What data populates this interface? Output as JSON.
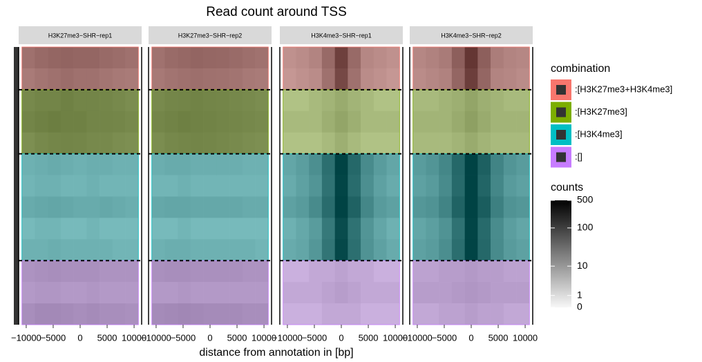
{
  "chart_data": {
    "type": "heatmap",
    "title": "Read count around TSS",
    "x_label": "distance from annotation in [bp]",
    "xlim": [
      -11400,
      11400
    ],
    "xticks": [
      {
        "value": -10000,
        "label": "−10000"
      },
      {
        "value": -5000,
        "label": "−5000"
      },
      0,
      5000,
      10000
    ],
    "x_bins": [
      -10800,
      -8400,
      -6000,
      -3600,
      -1200,
      1200,
      3600,
      6000,
      8400,
      10800
    ],
    "legend": {
      "title": "combination",
      "categories": [
        ":[H3K27me3+H3K4me3]",
        ":[H3K27me3]",
        ":[H3K4me3]",
        ":[]"
      ],
      "colors": [
        "#F8766D",
        "#7CAE00",
        "#00BFC4",
        "#C77CFF"
      ]
    },
    "colorbar": {
      "title": "counts",
      "lim": [
        0,
        500
      ],
      "ticks": [
        0,
        1,
        10,
        100,
        500
      ],
      "scale": "log1p"
    },
    "facets": [
      {
        "name": "H3K27me3−SHR−rep1",
        "groups": [
          {
            "rows": [
              [
                30,
                40,
                45,
                50,
                45,
                45,
                40,
                35,
                30
              ],
              [
                20,
                25,
                30,
                35,
                30,
                30,
                25,
                22,
                20
              ]
            ]
          },
          {
            "rows": [
              [
                25,
                30,
                30,
                35,
                30,
                30,
                28,
                25,
                22
              ],
              [
                30,
                35,
                40,
                35,
                35,
                30,
                30,
                28,
                25
              ],
              [
                20,
                25,
                28,
                30,
                28,
                25,
                25,
                22,
                20
              ]
            ]
          },
          {
            "rows": [
              [
                6,
                7,
                8,
                7,
                6,
                7,
                7,
                6,
                6
              ],
              [
                5,
                6,
                6,
                5,
                5,
                6,
                5,
                5,
                5
              ],
              [
                8,
                9,
                10,
                9,
                8,
                8,
                9,
                8,
                7
              ],
              [
                4,
                5,
                5,
                4,
                4,
                5,
                4,
                4,
                4
              ],
              [
                6,
                6,
                7,
                6,
                6,
                6,
                6,
                5,
                5
              ]
            ]
          },
          {
            "rows": [
              [
                8,
                9,
                10,
                9,
                9,
                9,
                8,
                8,
                8
              ],
              [
                6,
                7,
                7,
                6,
                6,
                7,
                6,
                6,
                6
              ],
              [
                10,
                12,
                12,
                11,
                10,
                11,
                10,
                10,
                9
              ]
            ]
          }
        ]
      },
      {
        "name": "H3K27me3−SHR−rep2",
        "groups": [
          {
            "rows": [
              [
                28,
                38,
                42,
                48,
                44,
                42,
                38,
                32,
                28
              ],
              [
                22,
                26,
                30,
                32,
                30,
                28,
                26,
                22,
                20
              ]
            ]
          },
          {
            "rows": [
              [
                24,
                28,
                30,
                32,
                30,
                28,
                26,
                24,
                22
              ],
              [
                28,
                32,
                36,
                34,
                32,
                30,
                28,
                26,
                24
              ],
              [
                22,
                26,
                28,
                30,
                28,
                26,
                24,
                22,
                20
              ]
            ]
          },
          {
            "rows": [
              [
                7,
                8,
                8,
                7,
                7,
                7,
                7,
                6,
                6
              ],
              [
                5,
                5,
                6,
                5,
                5,
                5,
                5,
                5,
                5
              ],
              [
                9,
                10,
                10,
                9,
                9,
                9,
                9,
                8,
                8
              ],
              [
                4,
                4,
                5,
                4,
                4,
                4,
                4,
                4,
                4
              ],
              [
                6,
                7,
                7,
                6,
                6,
                6,
                6,
                6,
                5
              ]
            ]
          },
          {
            "rows": [
              [
                9,
                10,
                10,
                9,
                9,
                9,
                9,
                8,
                8
              ],
              [
                6,
                6,
                7,
                6,
                6,
                6,
                6,
                6,
                6
              ],
              [
                11,
                12,
                13,
                12,
                11,
                11,
                11,
                10,
                10
              ]
            ]
          }
        ]
      },
      {
        "name": "H3K4me3−SHR−rep1",
        "groups": [
          {
            "rows": [
              [
                8,
                10,
                14,
                40,
                200,
                40,
                12,
                10,
                8
              ],
              [
                6,
                8,
                10,
                30,
                150,
                30,
                10,
                8,
                6
              ]
            ]
          },
          {
            "rows": [
              [
                2,
                2,
                3,
                4,
                6,
                4,
                3,
                2,
                2
              ],
              [
                3,
                3,
                3,
                5,
                8,
                5,
                3,
                3,
                3
              ],
              [
                2,
                2,
                2,
                3,
                5,
                3,
                2,
                2,
                2
              ]
            ]
          },
          {
            "rows": [
              [
                10,
                14,
                25,
                90,
                500,
                120,
                30,
                15,
                10
              ],
              [
                8,
                12,
                20,
                80,
                450,
                100,
                25,
                12,
                8
              ],
              [
                12,
                16,
                30,
                100,
                500,
                150,
                35,
                16,
                12
              ],
              [
                6,
                9,
                15,
                60,
                350,
                80,
                20,
                10,
                6
              ],
              [
                8,
                10,
                18,
                70,
                400,
                90,
                22,
                12,
                8
              ]
            ]
          },
          {
            "rows": [
              [
                2,
                2,
                3,
                3,
                4,
                3,
                3,
                2,
                2
              ],
              [
                3,
                3,
                3,
                4,
                5,
                4,
                3,
                3,
                3
              ],
              [
                2,
                2,
                2,
                3,
                3,
                3,
                2,
                2,
                2
              ]
            ]
          }
        ]
      },
      {
        "name": "H3K4me3−SHR−rep2",
        "groups": [
          {
            "rows": [
              [
                12,
                15,
                20,
                60,
                300,
                60,
                18,
                14,
                12
              ],
              [
                10,
                12,
                15,
                45,
                220,
                45,
                14,
                12,
                10
              ]
            ]
          },
          {
            "rows": [
              [
                3,
                3,
                4,
                5,
                8,
                5,
                4,
                3,
                3
              ],
              [
                4,
                4,
                4,
                6,
                10,
                6,
                4,
                4,
                4
              ],
              [
                3,
                3,
                3,
                4,
                6,
                4,
                3,
                3,
                3
              ]
            ]
          },
          {
            "rows": [
              [
                15,
                20,
                35,
                120,
                500,
                160,
                40,
                20,
                15
              ],
              [
                12,
                16,
                30,
                110,
                500,
                130,
                35,
                16,
                12
              ],
              [
                18,
                22,
                40,
                140,
                500,
                180,
                45,
                22,
                18
              ],
              [
                10,
                13,
                22,
                80,
                450,
                110,
                28,
                14,
                10
              ],
              [
                12,
                15,
                26,
                95,
                480,
                120,
                30,
                16,
                12
              ]
            ]
          },
          {
            "rows": [
              [
                4,
                4,
                5,
                5,
                6,
                5,
                5,
                4,
                4
              ],
              [
                5,
                5,
                5,
                6,
                7,
                6,
                5,
                5,
                5
              ],
              [
                3,
                3,
                4,
                4,
                5,
                4,
                4,
                3,
                3
              ]
            ]
          }
        ]
      }
    ]
  }
}
